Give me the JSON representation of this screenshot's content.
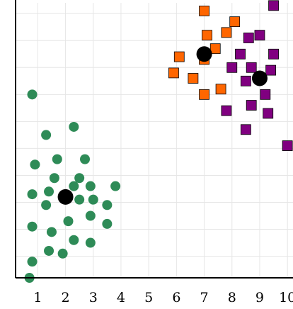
{
  "chart_data": {
    "type": "scatter",
    "title": "",
    "xlabel": "",
    "ylabel": "",
    "xlim": [
      0.2,
      10.2
    ],
    "ylim": [
      0.2,
      10.4
    ],
    "x_ticks": [
      1,
      2,
      3,
      4,
      5,
      6,
      7,
      8,
      9,
      10
    ],
    "y_ticks": [],
    "grid": true,
    "legend": "none",
    "colors": {
      "green": "#2e8b57",
      "orange": "#ff6600",
      "purple": "#800080",
      "centroid": "#000000",
      "marker_edge": "#000000",
      "grid": "#e6e6e6",
      "axis": "#000000"
    },
    "series": [
      {
        "marker": "circle",
        "color": "#2e8b57",
        "points": [
          [
            0.8,
            7.0
          ],
          [
            2.3,
            5.8
          ],
          [
            1.3,
            5.5
          ],
          [
            0.9,
            4.4
          ],
          [
            1.7,
            4.6
          ],
          [
            2.7,
            4.6
          ],
          [
            1.6,
            3.9
          ],
          [
            2.5,
            3.9
          ],
          [
            0.8,
            3.3
          ],
          [
            1.4,
            3.4
          ],
          [
            2.3,
            3.6
          ],
          [
            2.9,
            3.6
          ],
          [
            3.8,
            3.6
          ],
          [
            1.3,
            2.9
          ],
          [
            2.5,
            3.1
          ],
          [
            3.0,
            3.1
          ],
          [
            3.5,
            2.9
          ],
          [
            2.9,
            2.5
          ],
          [
            2.1,
            2.3
          ],
          [
            3.5,
            2.2
          ],
          [
            0.8,
            2.1
          ],
          [
            1.5,
            1.9
          ],
          [
            2.3,
            1.6
          ],
          [
            2.9,
            1.5
          ],
          [
            1.4,
            1.2
          ],
          [
            1.9,
            1.1
          ],
          [
            0.8,
            0.8
          ],
          [
            0.7,
            0.2
          ]
        ]
      },
      {
        "marker": "square",
        "color": "#ff6600",
        "points": [
          [
            7.0,
            10.1
          ],
          [
            8.1,
            9.7
          ],
          [
            7.1,
            9.2
          ],
          [
            7.8,
            9.3
          ],
          [
            7.4,
            8.7
          ],
          [
            7.0,
            8.3
          ],
          [
            6.1,
            8.4
          ],
          [
            5.9,
            7.8
          ],
          [
            6.6,
            7.6
          ],
          [
            7.0,
            7.0
          ],
          [
            7.6,
            7.2
          ]
        ]
      },
      {
        "marker": "square",
        "color": "#800080",
        "points": [
          [
            9.5,
            10.3
          ],
          [
            9.0,
            9.2
          ],
          [
            8.6,
            9.1
          ],
          [
            8.3,
            8.5
          ],
          [
            9.5,
            8.5
          ],
          [
            8.0,
            8.0
          ],
          [
            8.7,
            8.0
          ],
          [
            9.4,
            7.9
          ],
          [
            8.5,
            7.5
          ],
          [
            9.2,
            7.0
          ],
          [
            8.7,
            6.6
          ],
          [
            7.8,
            6.4
          ],
          [
            9.3,
            6.3
          ],
          [
            8.5,
            5.7
          ],
          [
            10.0,
            5.1
          ]
        ]
      }
    ],
    "centroids": [
      [
        2.0,
        3.2
      ],
      [
        7.0,
        8.5
      ],
      [
        9.0,
        7.6
      ]
    ]
  }
}
